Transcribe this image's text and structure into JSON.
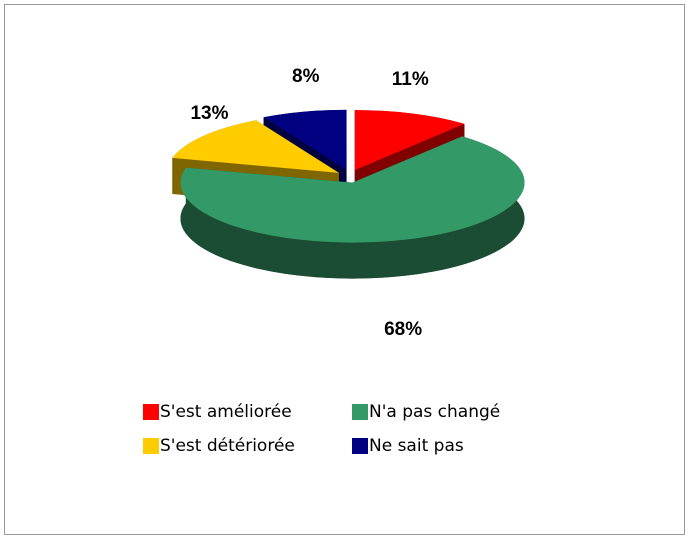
{
  "chart_data": {
    "type": "pie",
    "categories": [
      "S'est améliorée",
      "N'a pas changé",
      "S'est détériorée",
      "Ne sait pas"
    ],
    "values": [
      11,
      68,
      13,
      8
    ],
    "value_labels": [
      "11%",
      "68%",
      "13%",
      "8%"
    ],
    "colors": [
      "#ff0000",
      "#339966",
      "#ffcc00",
      "#000080"
    ],
    "legend": "bottom"
  }
}
